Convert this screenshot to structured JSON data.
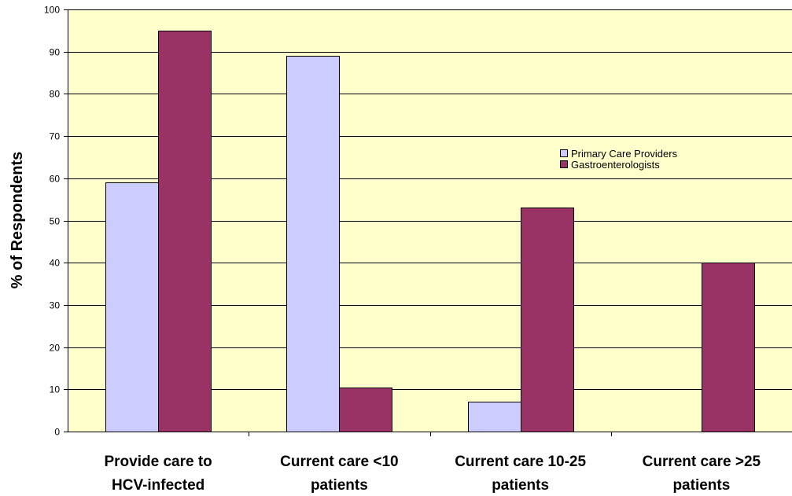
{
  "chart_data": {
    "type": "bar",
    "ylabel": "% of Respondents",
    "xlabel": "",
    "ylim": [
      0,
      100
    ],
    "y_ticks": [
      0,
      10,
      20,
      30,
      40,
      50,
      60,
      70,
      80,
      90,
      100
    ],
    "grid": true,
    "legend_position": "right",
    "categories": [
      [
        "Provide care to",
        "HCV-infected"
      ],
      [
        "Current care <10",
        "patients"
      ],
      [
        "Current care 10-25",
        "patients"
      ],
      [
        "Current care >25",
        "patients"
      ]
    ],
    "series": [
      {
        "name": "Primary Care Providers",
        "color": "#ccccff",
        "values": [
          59,
          89,
          7,
          0
        ]
      },
      {
        "name": "Gastroenterologists",
        "color": "#993366",
        "values": [
          95,
          10.5,
          53,
          40
        ]
      }
    ],
    "plot_background": "#ffffcc"
  }
}
